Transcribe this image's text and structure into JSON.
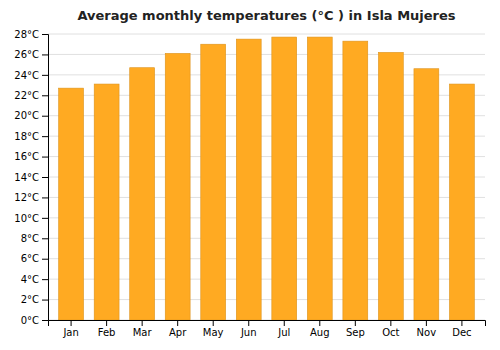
{
  "chart_data": {
    "type": "bar",
    "title": "Average monthly temperatures (°C ) in Isla Mujeres",
    "categories": [
      "Jan",
      "Feb",
      "Mar",
      "Apr",
      "May",
      "Jun",
      "Jul",
      "Aug",
      "Sep",
      "Oct",
      "Nov",
      "Dec"
    ],
    "values": [
      22.7,
      23.1,
      24.7,
      26.1,
      27.0,
      27.5,
      27.7,
      27.7,
      27.3,
      26.2,
      24.6,
      23.1
    ],
    "color": "#FFAA22",
    "ylim": [
      0,
      28
    ],
    "yticks": [
      {
        "value": 0,
        "label": "0°C"
      },
      {
        "value": 2,
        "label": "2°C"
      },
      {
        "value": 4,
        "label": "4°C"
      },
      {
        "value": 6,
        "label": "6°C"
      },
      {
        "value": 8,
        "label": "8°C"
      },
      {
        "value": 10,
        "label": "10°C"
      },
      {
        "value": 12,
        "label": "12°C"
      },
      {
        "value": 14,
        "label": "14°C"
      },
      {
        "value": 16,
        "label": "16°C"
      },
      {
        "value": 18,
        "label": "18°C"
      },
      {
        "value": 20,
        "label": "20°C"
      },
      {
        "value": 22,
        "label": "22°C"
      },
      {
        "value": 24,
        "label": "24°C"
      },
      {
        "value": 26,
        "label": "26°C"
      },
      {
        "value": 28,
        "label": "28°C"
      }
    ],
    "grid": true
  }
}
